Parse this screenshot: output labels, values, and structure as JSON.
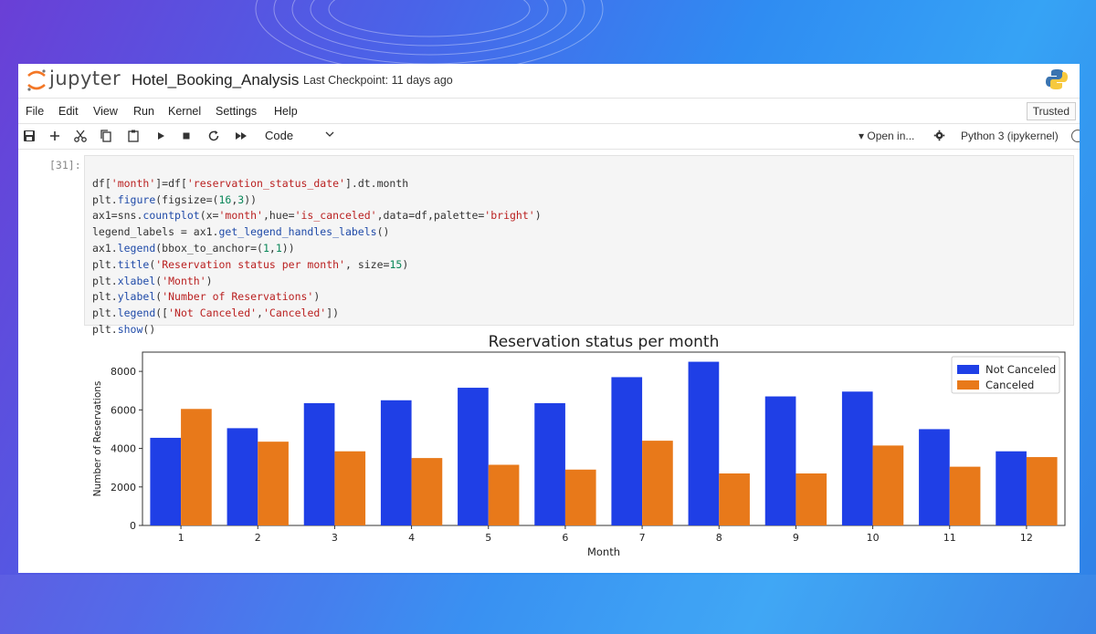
{
  "app": {
    "brand": "jupyter",
    "notebook_title": "Hotel_Booking_Analysis",
    "checkpoint": "Last Checkpoint: 11 days ago",
    "trusted": "Trusted"
  },
  "menu": [
    "File",
    "Edit",
    "View",
    "Run",
    "Kernel",
    "Settings",
    "Help"
  ],
  "toolbar": {
    "icons": [
      "save-icon",
      "add-cell-icon",
      "cut-icon",
      "copy-icon",
      "paste-icon",
      "run-icon",
      "stop-icon",
      "restart-icon",
      "run-all-icon"
    ],
    "cell_type": "Code",
    "open_in": "Open in...",
    "kernel": "Python 3 (ipykernel)"
  },
  "cell": {
    "prompt": "[31]:",
    "code": [
      "df['month']=df['reservation_status_date'].dt.month",
      "plt.figure(figsize=(16,3))",
      "ax1=sns.countplot(x='month',hue='is_canceled',data=df,palette='bright')",
      "legend_labels = ax1.get_legend_handles_labels()",
      "ax1.legend(bbox_to_anchor=(1,1))",
      "plt.title('Reservation status per month', size=15)",
      "plt.xlabel('Month')",
      "plt.ylabel('Number of Reservations')",
      "plt.legend(['Not Canceled','Canceled'])",
      "plt.show()"
    ]
  },
  "colors": {
    "not_canceled": "#1f3fe6",
    "canceled": "#e8791a"
  },
  "chart_data": {
    "type": "bar",
    "title": "Reservation status per month",
    "xlabel": "Month",
    "ylabel": "Number of Reservations",
    "categories": [
      "1",
      "2",
      "3",
      "4",
      "5",
      "6",
      "7",
      "8",
      "9",
      "10",
      "11",
      "12"
    ],
    "series": [
      {
        "name": "Not Canceled",
        "values": [
          4550,
          5050,
          6350,
          6500,
          7150,
          6350,
          7700,
          8500,
          6700,
          6950,
          5000,
          3850
        ]
      },
      {
        "name": "Canceled",
        "values": [
          6050,
          4350,
          3850,
          3500,
          3150,
          2900,
          4400,
          2700,
          2700,
          4150,
          3050,
          3550
        ]
      }
    ],
    "yticks": [
      0,
      2000,
      4000,
      6000,
      8000
    ],
    "ylim": [
      0,
      9000
    ],
    "legend_position": "top-right"
  }
}
